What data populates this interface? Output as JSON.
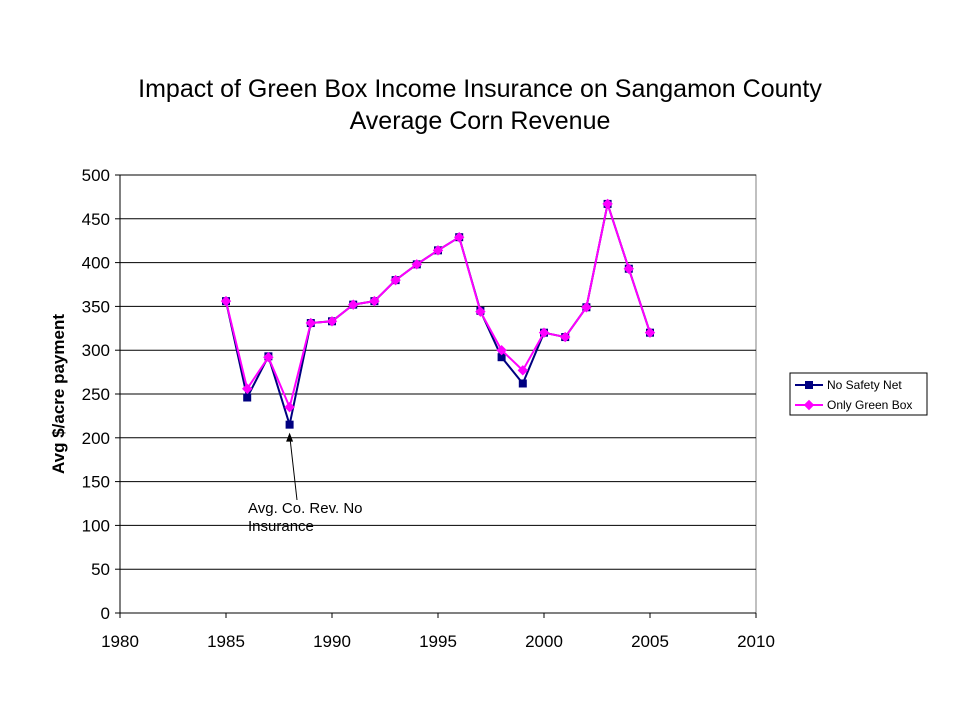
{
  "chart_data": {
    "type": "line",
    "title": [
      "Impact of Green Box Income Insurance on Sangamon County",
      "Average Corn Revenue"
    ],
    "xlabel": "",
    "ylabel": "Avg $/acre payment",
    "xlim": [
      1980,
      2010
    ],
    "ylim": [
      0,
      500
    ],
    "xticks": [
      1980,
      1985,
      1990,
      1995,
      2000,
      2005,
      2010
    ],
    "yticks": [
      0,
      50,
      100,
      150,
      200,
      250,
      300,
      350,
      400,
      450,
      500
    ],
    "grid": "horizontal",
    "legend_position": "right",
    "x": [
      1985,
      1986,
      1987,
      1988,
      1989,
      1990,
      1991,
      1992,
      1993,
      1994,
      1995,
      1996,
      1997,
      1998,
      1999,
      2000,
      2001,
      2002,
      2003,
      2004,
      2005
    ],
    "series": [
      {
        "name": "No Safety Net",
        "color": "#000080",
        "marker": "square",
        "values": [
          356,
          246,
          293,
          215,
          331,
          333,
          352,
          356,
          380,
          398,
          414,
          429,
          345,
          292,
          262,
          320,
          315,
          349,
          467,
          393,
          320
        ]
      },
      {
        "name": "Only Green Box",
        "color": "#ff00ff",
        "marker": "diamond",
        "values": [
          356,
          256,
          292,
          235,
          331,
          333,
          352,
          356,
          380,
          398,
          414,
          429,
          344,
          300,
          277,
          320,
          315,
          349,
          467,
          393,
          320
        ]
      }
    ],
    "annotations": [
      {
        "lines": [
          "Avg. Co. Rev. No",
          "Insurance"
        ],
        "points_to": {
          "x": 1988,
          "y": 215
        }
      }
    ]
  }
}
